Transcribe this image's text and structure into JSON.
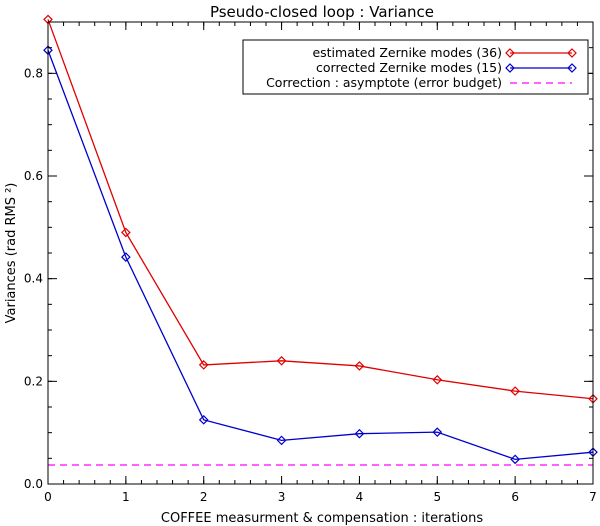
{
  "chart_data": {
    "type": "line",
    "title": "Pseudo-closed loop : Variance",
    "xlabel": "COFFEE measurment & compensation : iterations",
    "ylabel": "Variances (rad RMS ²)",
    "xlim": [
      0,
      7
    ],
    "ylim": [
      0,
      0.9
    ],
    "xticks": [
      "0",
      "1",
      "2",
      "3",
      "4",
      "5",
      "6",
      "7"
    ],
    "yticks": [
      {
        "value": 0.0,
        "label": "0.0"
      },
      {
        "value": 0.2,
        "label": "0.2"
      },
      {
        "value": 0.4,
        "label": "0.4"
      },
      {
        "value": 0.6,
        "label": "0.6"
      },
      {
        "value": 0.8,
        "label": "0.8"
      }
    ],
    "x": [
      0,
      1,
      2,
      3,
      4,
      5,
      6,
      7
    ],
    "series": [
      {
        "name": "estimated Zernike modes (36)",
        "color": "#e00000",
        "marker": "diamond",
        "values": [
          0.905,
          0.49,
          0.232,
          0.24,
          0.23,
          0.203,
          0.181,
          0.166
        ]
      },
      {
        "name": "corrected Zernike modes (15)",
        "color": "#0000cc",
        "marker": "diamond",
        "values": [
          0.845,
          0.442,
          0.125,
          0.085,
          0.098,
          0.101,
          0.048,
          0.062
        ]
      }
    ],
    "asymptote": {
      "name": "Correction : asymptote (error budget)",
      "color": "#ff00ff",
      "style": "dashed",
      "value": 0.037
    },
    "legend_position": "top-right",
    "grid": false
  }
}
